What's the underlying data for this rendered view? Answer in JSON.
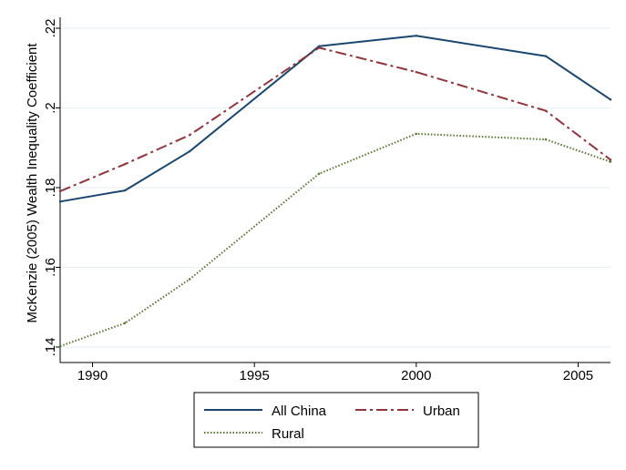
{
  "chart_data": {
    "type": "line",
    "title": "",
    "xlabel": "",
    "ylabel": "McKenzie (2005) Wealth Inequality Coefficient",
    "xlim": [
      1989,
      2006
    ],
    "ylim": [
      0.14,
      0.22
    ],
    "xticks": [
      1990,
      1995,
      2000,
      2005
    ],
    "xtick_labels": [
      "1990",
      "1995",
      "2000",
      "2005"
    ],
    "yticks": [
      0.14,
      0.16,
      0.18,
      0.2,
      0.22
    ],
    "ytick_labels": [
      ".14",
      ".16",
      ".18",
      ".2",
      ".22"
    ],
    "grid": "horizontal",
    "legend_position": "bottom",
    "series": [
      {
        "name": "All China",
        "color": "#1a476f",
        "style": "solid",
        "x": [
          1989,
          1991,
          1993,
          1997,
          2000,
          2004,
          2006
        ],
        "values": [
          0.1765,
          0.1793,
          0.1891,
          0.2155,
          0.2181,
          0.213,
          0.2021
        ]
      },
      {
        "name": "Urban",
        "color": "#90353b",
        "style": "dashdot",
        "x": [
          1989,
          1991,
          1993,
          1997,
          2000,
          2004,
          2006
        ],
        "values": [
          0.1791,
          0.1859,
          0.1932,
          0.2151,
          0.209,
          0.1993,
          0.187
        ]
      },
      {
        "name": "Rural",
        "color": "#55752f",
        "style": "dotted",
        "x": [
          1989,
          1991,
          1993,
          1997,
          2000,
          2004,
          2006
        ],
        "values": [
          0.1402,
          0.146,
          0.157,
          0.1835,
          0.1935,
          0.1921,
          0.1865
        ]
      }
    ]
  }
}
